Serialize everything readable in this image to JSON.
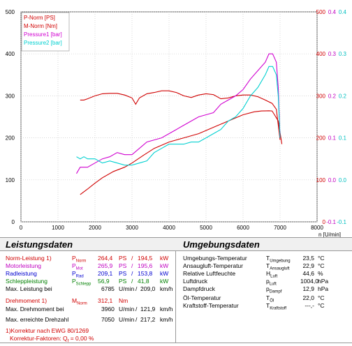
{
  "chart_data": {
    "type": "line",
    "xlabel": "n [U/min]",
    "xlim": [
      0,
      8000
    ],
    "x_ticks": [
      "0",
      "1000",
      "2000",
      "3000",
      "4000",
      "5000",
      "6000",
      "7000",
      "8000"
    ],
    "left_axis": {
      "ylim": [
        0,
        500
      ],
      "ticks": [
        "0",
        "100",
        "200",
        "300",
        "400",
        "500"
      ]
    },
    "right_axes": [
      {
        "ticks": [
          "0",
          "100",
          "200",
          "300",
          "400",
          "500"
        ],
        "color": "#d00000",
        "ylim": [
          0,
          500
        ]
      },
      {
        "ticks": [
          "-0.1",
          "0.0",
          "0.1",
          "0.2",
          "0.3",
          "0.4"
        ],
        "color": "#c000c0",
        "ylim": [
          -0.1,
          0.4
        ]
      },
      {
        "ticks": [
          "-0.1",
          "0.0",
          "0.1",
          "0.2",
          "0.3",
          "0.4"
        ],
        "color": "#00c0c0",
        "ylim": [
          -0.1,
          0.4
        ]
      }
    ],
    "grid": true,
    "legend": {
      "placement": "top-left",
      "entries": [
        {
          "name": "P-Norm [PS]",
          "color": "#d00000"
        },
        {
          "name": "M-Norm [Nm]",
          "color": "#d00000"
        },
        {
          "name": "Pressure1 [bar]",
          "color": "#d000d0"
        },
        {
          "name": "Pressure2 [bar]",
          "color": "#00d0d0"
        }
      ]
    },
    "series": [
      {
        "name": "P-Norm [PS]",
        "color": "#d00000",
        "axis": "left",
        "x": [
          1600,
          1800,
          2000,
          2200,
          2500,
          2800,
          3000,
          3300,
          3600,
          4000,
          4400,
          4800,
          5200,
          5600,
          6000,
          6300,
          6500,
          6700,
          6785,
          6850,
          6950,
          7050
        ],
        "y": [
          65,
          78,
          92,
          105,
          120,
          130,
          140,
          158,
          175,
          190,
          200,
          210,
          225,
          240,
          255,
          262,
          264,
          264.4,
          264,
          255,
          240,
          185
        ]
      },
      {
        "name": "M-Norm [Nm]",
        "color": "#d00000",
        "axis": "right1",
        "x": [
          1600,
          1700,
          1800,
          2000,
          2200,
          2400,
          2600,
          2800,
          3000,
          3100,
          3200,
          3400,
          3600,
          3800,
          4000,
          4200,
          4400,
          4600,
          4800,
          5000,
          5200,
          5400,
          5600,
          5800,
          6000,
          6200,
          6400,
          6600,
          6785,
          6900,
          7000
        ],
        "y": [
          290,
          290,
          293,
          300,
          305,
          306,
          306,
          302,
          295,
          280,
          295,
          305,
          308,
          312,
          312,
          308,
          300,
          296,
          302,
          305,
          303,
          293,
          295,
          300,
          302,
          302,
          298,
          290,
          282,
          268,
          195
        ]
      },
      {
        "name": "Pressure1 [bar]",
        "color": "#d000d0",
        "axis": "right2",
        "x": [
          1500,
          1600,
          1700,
          1800,
          2000,
          2200,
          2400,
          2600,
          2800,
          3000,
          3200,
          3400,
          3600,
          3800,
          4000,
          4200,
          4400,
          4600,
          4800,
          5000,
          5200,
          5400,
          5600,
          5800,
          6000,
          6200,
          6400,
          6600,
          6700,
          6800,
          6900,
          6950,
          7000
        ],
        "y": [
          0.015,
          0.03,
          0.03,
          0.03,
          0.04,
          0.05,
          0.055,
          0.065,
          0.06,
          0.06,
          0.075,
          0.09,
          0.095,
          0.1,
          0.11,
          0.12,
          0.13,
          0.14,
          0.15,
          0.155,
          0.16,
          0.18,
          0.19,
          0.2,
          0.215,
          0.24,
          0.26,
          0.28,
          0.3,
          0.3,
          0.28,
          0.22,
          0.1
        ]
      },
      {
        "name": "Pressure2 [bar]",
        "color": "#00d0d0",
        "axis": "right3",
        "x": [
          1500,
          1600,
          1700,
          1800,
          2000,
          2200,
          2400,
          2600,
          2800,
          3000,
          3200,
          3400,
          3600,
          3800,
          4000,
          4200,
          4400,
          4600,
          4800,
          5000,
          5200,
          5400,
          5600,
          5800,
          6000,
          6200,
          6400,
          6600,
          6700,
          6800,
          6900,
          6950,
          7000
        ],
        "y": [
          0.055,
          0.05,
          0.055,
          0.05,
          0.05,
          0.04,
          0.045,
          0.04,
          0.035,
          0.035,
          0.04,
          0.045,
          0.065,
          0.075,
          0.085,
          0.085,
          0.085,
          0.09,
          0.09,
          0.1,
          0.11,
          0.12,
          0.14,
          0.15,
          0.17,
          0.2,
          0.22,
          0.25,
          0.27,
          0.27,
          0.25,
          0.2,
          0.1
        ]
      }
    ]
  },
  "leistung": {
    "title": "Leistungsdaten",
    "rows": [
      {
        "label": "Norm-Leistung",
        "note": "1)",
        "sym": "P",
        "sub": "Norm",
        "v1": "264,4",
        "u1": "PS",
        "sep": "/",
        "v2": "194,5",
        "u2": "kW"
      },
      {
        "label": "Motorleistung",
        "note": "",
        "sym": "P",
        "sub": "Mot",
        "v1": "265,9",
        "u1": "PS",
        "sep": "/",
        "v2": "195,6",
        "u2": "kW"
      },
      {
        "label": "Radleistung",
        "note": "",
        "sym": "P",
        "sub": "Rad",
        "v1": "209,1",
        "u1": "PS",
        "sep": "/",
        "v2": "153,8",
        "u2": "kW"
      },
      {
        "label": "Schleppleistung",
        "note": "",
        "sym": "P",
        "sub": "Schlepp",
        "v1": "56,9",
        "u1": "PS",
        "sep": "/",
        "v2": "41,8",
        "u2": "kW"
      }
    ],
    "max_leistung": {
      "label": "Max. Leistung bei",
      "v1": "6785",
      "u1": "U/min",
      "sep": "/",
      "v2": "209,0",
      "u2": "km/h"
    },
    "drehmoment": {
      "label": "Drehmoment",
      "note": "1)",
      "sym": "M",
      "sub": "Norm",
      "v1": "312,1",
      "u1": "Nm"
    },
    "max_drehmoment": {
      "label": "Max. Drehmoment bei",
      "v1": "3960",
      "u1": "U/min",
      "sep": "/",
      "v2": "121,9",
      "u2": "km/h"
    },
    "max_drehzahl": {
      "label": "Max. erreichte Drehzahl",
      "v1": "7050",
      "u1": "U/min",
      "sep": "/",
      "v2": "217,2",
      "u2": "km/h"
    },
    "korrektur1": "1)Korrektur nach EWG 80/1269",
    "korrektur2": "Korrektur-Faktoren: Q",
    "korrektur2_sub": "f",
    "korrektur2_val": " =    0,00 %"
  },
  "umgebung": {
    "title": "Umgebungsdaten",
    "rows": [
      {
        "label": "Umgebungs-Temperatur",
        "sym": "T",
        "sub": "Umgebung",
        "val": "23,5",
        "unit": "°C"
      },
      {
        "label": "Ansaugluft-Temperatur",
        "sym": "T",
        "sub": "Ansaugluft",
        "val": "22,9",
        "unit": "°C"
      },
      {
        "label": "Relative Luftfeuchte",
        "sym": "H",
        "sub": "Luft",
        "val": "44,6",
        "unit": "%"
      },
      {
        "label": "Luftdruck",
        "sym": "p",
        "sub": "Luft",
        "val": "1004,0",
        "unit": "hPa"
      },
      {
        "label": "Dampfdruck",
        "sym": "p",
        "sub": "Dampf",
        "val": "12,9",
        "unit": "hPa"
      },
      {
        "label": "Öl-Temperatur",
        "sym": "T",
        "sub": "Öl",
        "val": "22,0",
        "unit": "°C"
      },
      {
        "label": "Kraftstoff-Temperatur",
        "sym": "T",
        "sub": "Kraftstoff",
        "val": "---,-",
        "unit": "°C"
      }
    ]
  }
}
